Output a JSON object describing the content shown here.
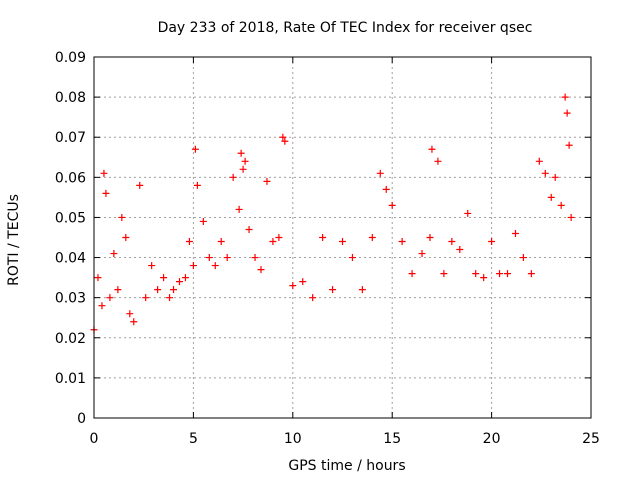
{
  "chart_data": {
    "type": "scatter",
    "title": "Day 233 of 2018, Rate Of TEC Index for receiver qsec",
    "xlabel": "GPS time / hours",
    "ylabel": "ROTI / TECUs",
    "xlim": [
      0,
      25
    ],
    "ylim": [
      0,
      0.09
    ],
    "x_ticks": [
      "0",
      "5",
      "10",
      "15",
      "20",
      "25"
    ],
    "y_ticks": [
      "0",
      "0.01",
      "0.02",
      "0.03",
      "0.04",
      "0.05",
      "0.06",
      "0.07",
      "0.08",
      "0.09"
    ],
    "grid": true,
    "marker": "+",
    "series_color": "#ff0000",
    "series": [
      {
        "x": [
          0.0,
          0.2,
          0.4,
          0.5,
          0.6,
          0.8,
          1.0,
          1.2,
          1.4,
          1.6,
          1.8,
          2.0,
          2.3,
          2.6,
          2.9,
          3.2,
          3.5,
          3.8,
          4.0,
          4.3,
          4.6,
          4.8,
          5.0,
          5.1,
          5.2,
          5.5,
          5.8,
          6.1,
          6.4,
          6.7,
          7.0,
          7.3,
          7.4,
          7.5,
          7.6,
          7.8,
          8.1,
          8.4,
          8.7,
          9.0,
          9.3,
          9.5,
          9.6,
          10.0,
          10.5,
          11.0,
          11.5,
          12.0,
          12.5,
          13.0,
          13.5,
          14.0,
          14.4,
          14.7,
          15.0,
          15.5,
          16.0,
          16.5,
          16.9,
          17.0,
          17.3,
          17.6,
          18.0,
          18.4,
          18.8,
          19.2,
          19.6,
          20.0,
          20.4,
          20.8,
          21.2,
          21.6,
          22.0,
          22.4,
          22.7,
          23.0,
          23.2,
          23.5,
          23.7,
          23.8,
          23.9,
          24.0
        ],
        "y": [
          0.022,
          0.035,
          0.028,
          0.061,
          0.056,
          0.03,
          0.041,
          0.032,
          0.05,
          0.045,
          0.026,
          0.024,
          0.058,
          0.03,
          0.038,
          0.032,
          0.035,
          0.03,
          0.032,
          0.034,
          0.035,
          0.044,
          0.038,
          0.067,
          0.058,
          0.049,
          0.04,
          0.038,
          0.044,
          0.04,
          0.06,
          0.052,
          0.066,
          0.062,
          0.064,
          0.047,
          0.04,
          0.037,
          0.059,
          0.044,
          0.045,
          0.07,
          0.069,
          0.033,
          0.034,
          0.03,
          0.045,
          0.032,
          0.044,
          0.04,
          0.032,
          0.045,
          0.061,
          0.057,
          0.053,
          0.044,
          0.036,
          0.041,
          0.045,
          0.067,
          0.064,
          0.036,
          0.044,
          0.042,
          0.051,
          0.036,
          0.035,
          0.044,
          0.036,
          0.036,
          0.046,
          0.04,
          0.036,
          0.064,
          0.061,
          0.055,
          0.06,
          0.053,
          0.08,
          0.076,
          0.068,
          0.05
        ]
      }
    ]
  }
}
